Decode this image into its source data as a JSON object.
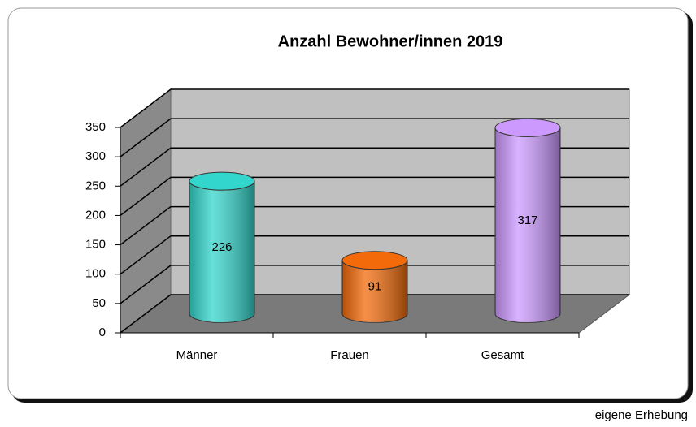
{
  "chart_data": {
    "type": "bar3d",
    "title": "Anzahl Bewohner/innen 2019",
    "categories": [
      "Männer",
      "Frauen",
      "Gesamt"
    ],
    "values": [
      226,
      91,
      317
    ],
    "colors": [
      "#33d6cc",
      "#f26a0a",
      "#cc99ff"
    ],
    "ylim": [
      0,
      350
    ],
    "yticks": [
      0,
      50,
      100,
      150,
      200,
      250,
      300,
      350
    ],
    "grid": true,
    "source": "eigene Erhebung"
  }
}
